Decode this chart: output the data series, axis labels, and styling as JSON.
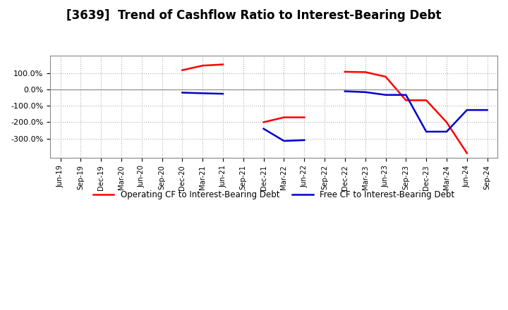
{
  "title": "[3639]  Trend of Cashflow Ratio to Interest-Bearing Debt",
  "title_fontsize": 12,
  "background_color": "#ffffff",
  "plot_bg_color": "#ffffff",
  "grid_color": "#b0b0b0",
  "x_labels": [
    "Jun-19",
    "Sep-19",
    "Dec-19",
    "Mar-20",
    "Jun-20",
    "Sep-20",
    "Dec-20",
    "Mar-21",
    "Jun-21",
    "Sep-21",
    "Dec-21",
    "Mar-22",
    "Jun-22",
    "Sep-22",
    "Dec-22",
    "Mar-23",
    "Jun-23",
    "Sep-23",
    "Dec-23",
    "Mar-24",
    "Jun-24",
    "Sep-24"
  ],
  "operating_cf": [
    null,
    null,
    null,
    null,
    null,
    null,
    120,
    148,
    155,
    null,
    -200,
    -170,
    -170,
    null,
    110,
    108,
    80,
    -65,
    -65,
    -200,
    -390,
    null
  ],
  "free_cf": [
    null,
    null,
    null,
    null,
    null,
    null,
    -18,
    -22,
    -25,
    null,
    -240,
    -315,
    -310,
    null,
    -10,
    -15,
    -32,
    -32,
    -258,
    -258,
    -125,
    -125
  ],
  "ylim": [
    -420,
    210
  ],
  "yticks": [
    100,
    0,
    -100,
    -200,
    -300
  ],
  "ytick_labels": [
    "100.0%",
    "0.0%",
    "-100.0%",
    "-200.0%",
    "-300.0%"
  ],
  "line_color_operating": "#ff0000",
  "line_color_free": "#0000cc",
  "line_width": 1.8,
  "legend_operating": "Operating CF to Interest-Bearing Debt",
  "legend_free": "Free CF to Interest-Bearing Debt"
}
